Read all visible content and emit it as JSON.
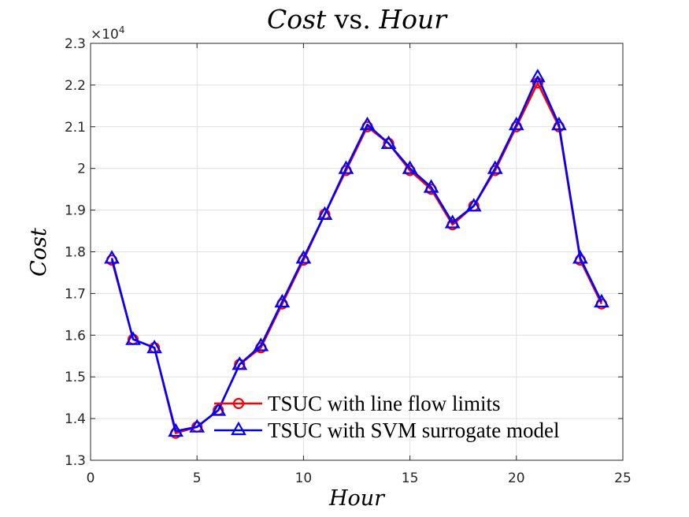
{
  "chart_data": {
    "type": "line",
    "title_italic": "Cost",
    "title_sep": " vs. ",
    "title_italic2": "Hour",
    "xlabel": "Hour",
    "ylabel": "Cost",
    "exponent_label": "×10",
    "exponent_power": "4",
    "xlim": [
      0,
      25
    ],
    "ylim": [
      1.3,
      2.3
    ],
    "xticks": [
      "0",
      "5",
      "10",
      "15",
      "20",
      "25"
    ],
    "yticks": [
      "1.3",
      "1.4",
      "1.5",
      "1.6",
      "1.7",
      "1.8",
      "1.9",
      "2",
      "2.1",
      "2.2",
      "2.3"
    ],
    "grid": true,
    "legend_position": "bottom-right",
    "x": [
      1,
      2,
      3,
      4,
      5,
      6,
      7,
      8,
      9,
      10,
      11,
      12,
      13,
      14,
      15,
      16,
      17,
      18,
      19,
      20,
      21,
      22,
      23,
      24
    ],
    "series": [
      {
        "name": "TSUC with line flow limits",
        "color": "#ff0000",
        "marker": "circle",
        "values": [
          1.78,
          1.59,
          1.57,
          1.365,
          1.38,
          1.42,
          1.53,
          1.57,
          1.675,
          1.78,
          1.89,
          1.995,
          2.1,
          2.06,
          1.995,
          1.95,
          1.865,
          1.91,
          1.995,
          2.1,
          2.205,
          2.1,
          1.78,
          1.675
        ]
      },
      {
        "name": "TSUC with SVM surrogate model",
        "color": "#0000ff",
        "marker": "triangle",
        "values": [
          1.785,
          1.59,
          1.57,
          1.37,
          1.38,
          1.42,
          1.53,
          1.575,
          1.68,
          1.785,
          1.89,
          2.0,
          2.105,
          2.06,
          2.0,
          1.955,
          1.87,
          1.91,
          2.0,
          2.105,
          2.22,
          2.105,
          1.785,
          1.68
        ]
      }
    ]
  }
}
